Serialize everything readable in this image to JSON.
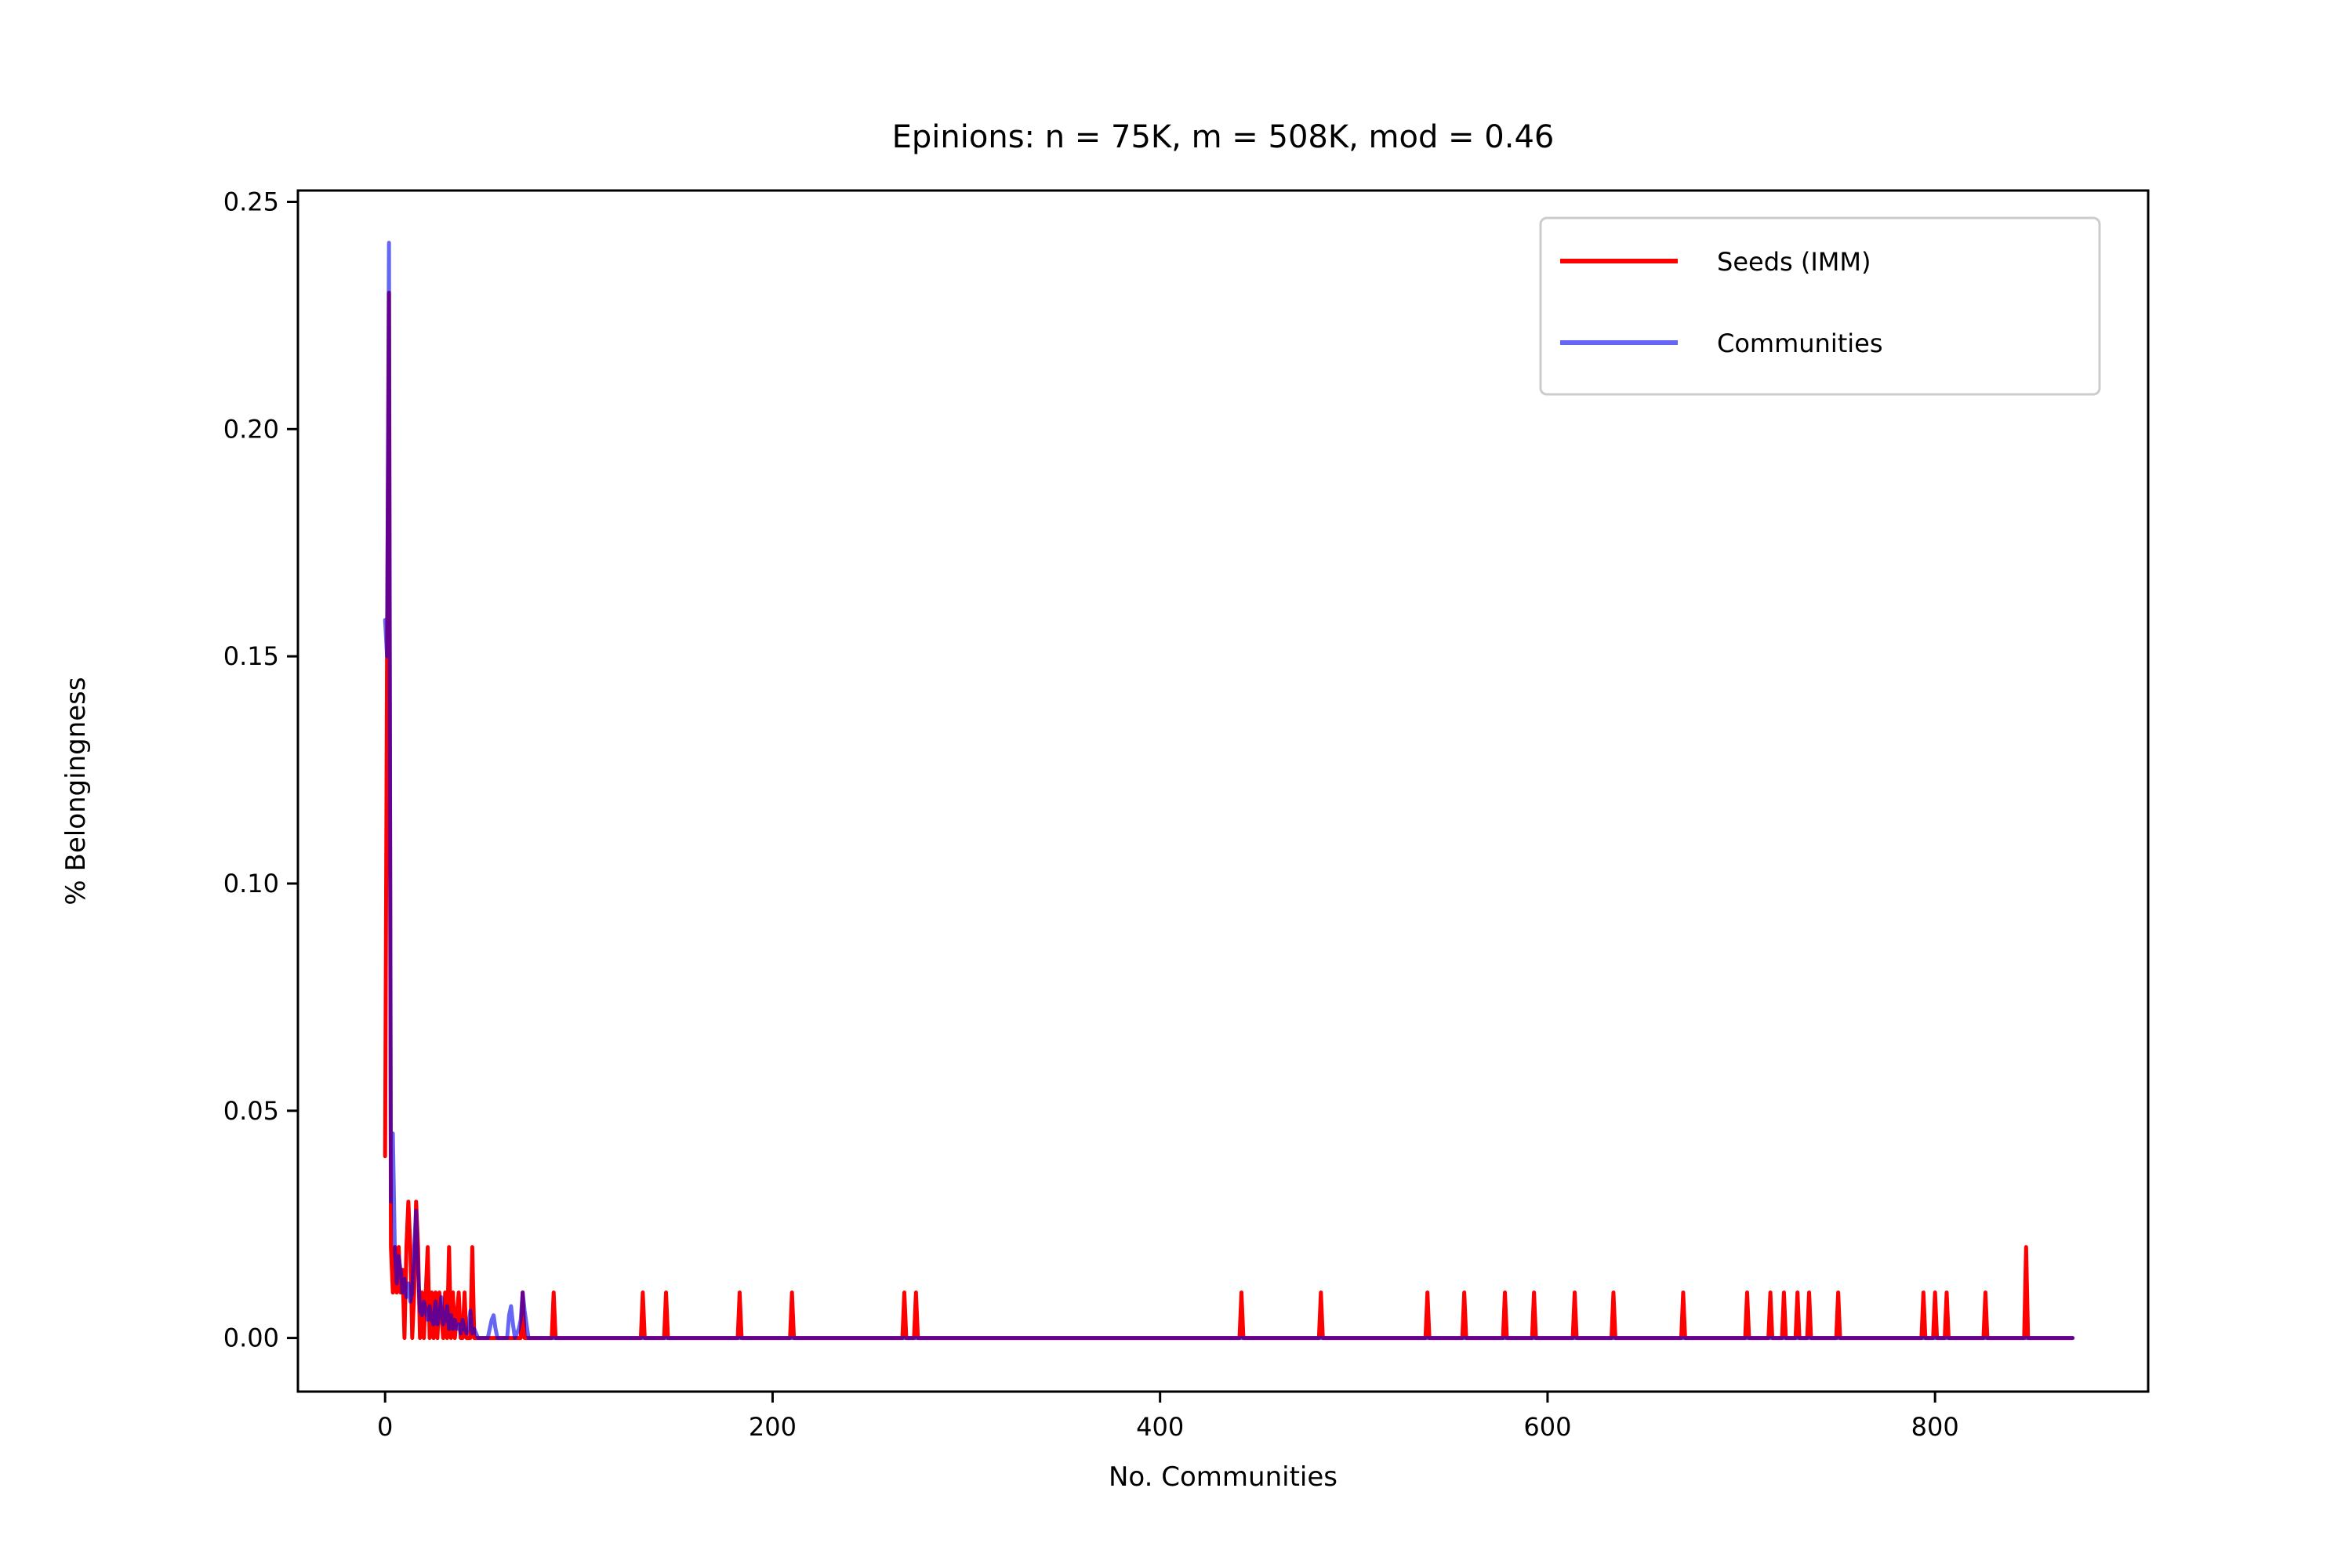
{
  "chart_data": {
    "type": "line",
    "title": "Epinions: n = 75K, m = 508K, mod = 0.46",
    "xlabel": "No. Communities",
    "ylabel": "% Belongingness",
    "xlim": [
      -45,
      910
    ],
    "ylim": [
      -0.0118,
      0.2525
    ],
    "xticks": [
      0,
      200,
      400,
      600,
      800
    ],
    "xtick_labels": [
      "0",
      "200",
      "400",
      "600",
      "800"
    ],
    "yticks": [
      0.0,
      0.05,
      0.1,
      0.15,
      0.2,
      0.25
    ],
    "ytick_labels": [
      "0.00",
      "0.05",
      "0.10",
      "0.15",
      "0.20",
      "0.25"
    ],
    "grid": false,
    "legend_position": "top-right",
    "x_max": 871,
    "series": [
      {
        "name": "Seeds (IMM)",
        "color": "#ff0000",
        "opacity": 1.0,
        "points": [
          [
            0,
            0.04
          ],
          [
            1,
            0.15
          ],
          [
            2,
            0.23
          ],
          [
            3,
            0.02
          ],
          [
            4,
            0.01
          ],
          [
            5,
            0.02
          ],
          [
            6,
            0.01
          ],
          [
            7,
            0.02
          ],
          [
            8,
            0.01
          ],
          [
            9,
            0.015
          ],
          [
            10,
            0.0
          ],
          [
            11,
            0.02
          ],
          [
            12,
            0.03
          ],
          [
            13,
            0.02
          ],
          [
            14,
            0.0
          ],
          [
            15,
            0.01
          ],
          [
            16,
            0.03
          ],
          [
            17,
            0.02
          ],
          [
            18,
            0.0
          ],
          [
            19,
            0.01
          ],
          [
            20,
            0.0
          ],
          [
            21,
            0.01
          ],
          [
            22,
            0.02
          ],
          [
            23,
            0.0
          ],
          [
            24,
            0.01
          ],
          [
            25,
            0.0
          ],
          [
            26,
            0.01
          ],
          [
            27,
            0.0
          ],
          [
            28,
            0.01
          ],
          [
            29,
            0.005
          ],
          [
            30,
            0.0
          ],
          [
            31,
            0.01
          ],
          [
            32,
            0.0
          ],
          [
            33,
            0.02
          ],
          [
            34,
            0.0
          ],
          [
            35,
            0.01
          ],
          [
            36,
            0.0
          ],
          [
            38,
            0.01
          ],
          [
            39,
            0.0
          ],
          [
            40,
            0.0
          ],
          [
            41,
            0.01
          ],
          [
            42,
            0.0
          ],
          [
            44,
            0.0
          ],
          [
            45,
            0.02
          ],
          [
            46,
            0.0
          ],
          [
            50,
            0.0
          ],
          [
            70,
            0.0
          ],
          [
            71,
            0.01
          ],
          [
            72,
            0.0
          ],
          [
            86,
            0.0
          ],
          [
            87,
            0.01
          ],
          [
            88,
            0.0
          ],
          [
            132,
            0.0
          ],
          [
            133,
            0.01
          ],
          [
            134,
            0.0
          ],
          [
            144,
            0.0
          ],
          [
            145,
            0.01
          ],
          [
            146,
            0.0
          ],
          [
            182,
            0.0
          ],
          [
            183,
            0.01
          ],
          [
            184,
            0.0
          ],
          [
            209,
            0.0
          ],
          [
            210,
            0.01
          ],
          [
            211,
            0.0
          ],
          [
            267,
            0.0
          ],
          [
            268,
            0.01
          ],
          [
            269,
            0.0
          ],
          [
            273,
            0.0
          ],
          [
            274,
            0.01
          ],
          [
            275,
            0.0
          ],
          [
            441,
            0.0
          ],
          [
            442,
            0.01
          ],
          [
            443,
            0.0
          ],
          [
            482,
            0.0
          ],
          [
            483,
            0.01
          ],
          [
            484,
            0.0
          ],
          [
            537,
            0.0
          ],
          [
            538,
            0.01
          ],
          [
            539,
            0.0
          ],
          [
            556,
            0.0
          ],
          [
            557,
            0.01
          ],
          [
            558,
            0.0
          ],
          [
            577,
            0.0
          ],
          [
            578,
            0.01
          ],
          [
            579,
            0.0
          ],
          [
            592,
            0.0
          ],
          [
            593,
            0.01
          ],
          [
            594,
            0.0
          ],
          [
            613,
            0.0
          ],
          [
            614,
            0.01
          ],
          [
            615,
            0.0
          ],
          [
            633,
            0.0
          ],
          [
            634,
            0.01
          ],
          [
            635,
            0.0
          ],
          [
            669,
            0.0
          ],
          [
            670,
            0.01
          ],
          [
            671,
            0.0
          ],
          [
            702,
            0.0
          ],
          [
            703,
            0.01
          ],
          [
            704,
            0.0
          ],
          [
            714,
            0.0
          ],
          [
            715,
            0.01
          ],
          [
            716,
            0.0
          ],
          [
            721,
            0.0
          ],
          [
            722,
            0.01
          ],
          [
            723,
            0.0
          ],
          [
            728,
            0.0
          ],
          [
            729,
            0.01
          ],
          [
            730,
            0.0
          ],
          [
            734,
            0.0
          ],
          [
            735,
            0.01
          ],
          [
            736,
            0.0
          ],
          [
            749,
            0.0
          ],
          [
            750,
            0.01
          ],
          [
            751,
            0.0
          ],
          [
            793,
            0.0
          ],
          [
            794,
            0.01
          ],
          [
            795,
            0.0
          ],
          [
            799,
            0.0
          ],
          [
            800,
            0.01
          ],
          [
            801,
            0.0
          ],
          [
            805,
            0.0
          ],
          [
            806,
            0.01
          ],
          [
            807,
            0.0
          ],
          [
            825,
            0.0
          ],
          [
            826,
            0.01
          ],
          [
            827,
            0.0
          ],
          [
            846,
            0.0
          ],
          [
            847,
            0.02
          ],
          [
            848,
            0.0
          ],
          [
            871,
            0.0
          ]
        ]
      },
      {
        "name": "Communities",
        "color": "#0000ee",
        "opacity": 0.6,
        "points": [
          [
            0,
            0.158
          ],
          [
            1,
            0.15
          ],
          [
            2,
            0.241
          ],
          [
            3,
            0.03
          ],
          [
            4,
            0.045
          ],
          [
            5,
            0.02
          ],
          [
            6,
            0.012
          ],
          [
            7,
            0.018
          ],
          [
            8,
            0.015
          ],
          [
            9,
            0.01
          ],
          [
            10,
            0.013
          ],
          [
            11,
            0.009
          ],
          [
            12,
            0.012
          ],
          [
            13,
            0.008
          ],
          [
            14,
            0.01
          ],
          [
            15,
            0.02
          ],
          [
            16,
            0.028
          ],
          [
            17,
            0.015
          ],
          [
            18,
            0.006
          ],
          [
            19,
            0.005
          ],
          [
            20,
            0.008
          ],
          [
            21,
            0.006
          ],
          [
            22,
            0.004
          ],
          [
            23,
            0.007
          ],
          [
            24,
            0.004
          ],
          [
            25,
            0.003
          ],
          [
            26,
            0.008
          ],
          [
            27,
            0.003
          ],
          [
            28,
            0.005
          ],
          [
            29,
            0.009
          ],
          [
            30,
            0.003
          ],
          [
            31,
            0.004
          ],
          [
            32,
            0.007
          ],
          [
            33,
            0.002
          ],
          [
            34,
            0.005
          ],
          [
            35,
            0.002
          ],
          [
            36,
            0.004
          ],
          [
            37,
            0.002
          ],
          [
            38,
            0.003
          ],
          [
            39,
            0.001
          ],
          [
            40,
            0.004
          ],
          [
            41,
            0.002
          ],
          [
            42,
            0.001
          ],
          [
            43,
            0.002
          ],
          [
            44,
            0.006
          ],
          [
            45,
            0.001
          ],
          [
            46,
            0.002
          ],
          [
            47,
            0.001
          ],
          [
            48,
            0.0
          ],
          [
            53,
            0.0
          ],
          [
            54,
            0.002
          ],
          [
            55,
            0.004
          ],
          [
            56,
            0.005
          ],
          [
            57,
            0.002
          ],
          [
            58,
            0.0
          ],
          [
            63,
            0.0
          ],
          [
            64,
            0.005
          ],
          [
            65,
            0.007
          ],
          [
            66,
            0.003
          ],
          [
            67,
            0.0
          ],
          [
            69,
            0.002
          ],
          [
            70,
            0.004
          ],
          [
            71,
            0.01
          ],
          [
            72,
            0.006
          ],
          [
            73,
            0.003
          ],
          [
            74,
            0.0
          ],
          [
            871,
            0.0
          ]
        ]
      }
    ]
  }
}
